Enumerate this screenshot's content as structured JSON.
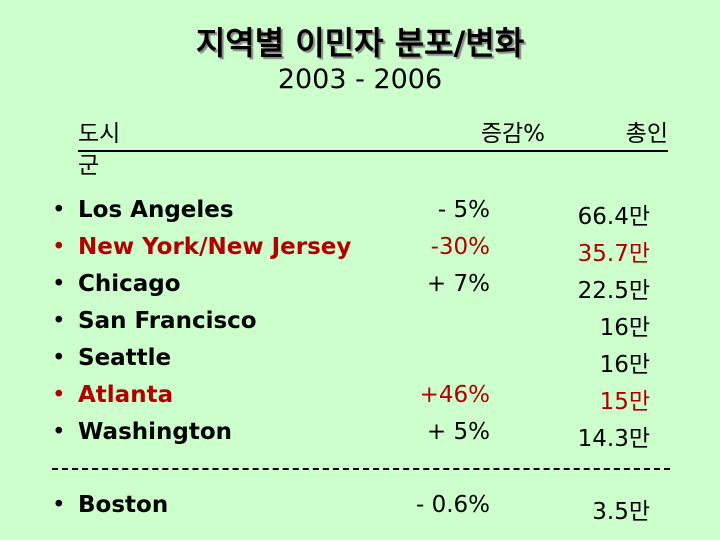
{
  "title": "지역별 이민자 분포/변화",
  "subtitle": "2003 - 2006",
  "table": {
    "header": {
      "city_line1": "도시",
      "city_line2": "군",
      "change": "증감%",
      "total": "총인"
    },
    "rows": [
      {
        "city": "Los Angeles",
        "change": "- 5%",
        "total": "66.4만",
        "color": "#000000"
      },
      {
        "city": "New York/New Jersey",
        "change": "-30%",
        "total": "35.7만",
        "color": "#b00000"
      },
      {
        "city": "Chicago",
        "change": "+ 7%",
        "total": "22.5만",
        "color": "#000000"
      },
      {
        "city": "San Francisco",
        "total": "16만",
        "color": "#000000"
      },
      {
        "city": "Seattle",
        "total": "16만",
        "color": "#000000"
      },
      {
        "city": "Atlanta",
        "change": "+46%",
        "total": "15만",
        "color": "#b00000"
      },
      {
        "city": "Washington",
        "change": "+ 5%",
        "total": "14.3만",
        "color": "#000000"
      }
    ],
    "extra_row": {
      "city": "Boston",
      "change": "- 0.6%",
      "total": "3.5만",
      "color": "#000000"
    }
  }
}
